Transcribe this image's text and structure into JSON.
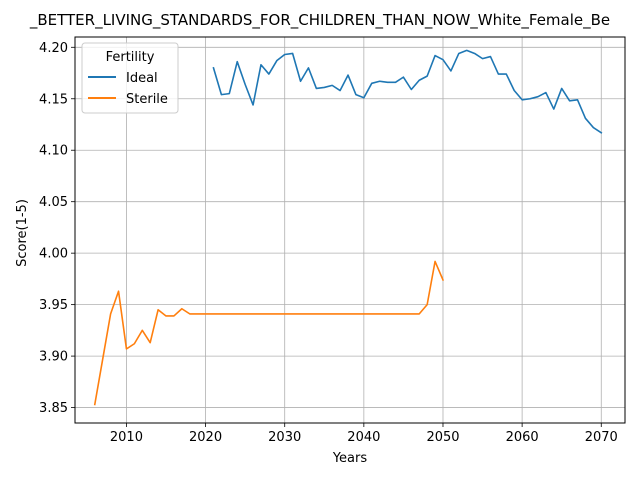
{
  "chart_data": {
    "type": "line",
    "title": "_BETTER_LIVING_STANDARDS_FOR_CHILDREN_THAN_NOW_White_Female_Be",
    "xlabel": "Years",
    "ylabel": "Score(1-5)",
    "xlim": [
      2003.5,
      2073.0
    ],
    "ylim": [
      3.835,
      4.21
    ],
    "xticks": [
      2010,
      2020,
      2030,
      2040,
      2050,
      2060,
      2070
    ],
    "yticks": [
      3.85,
      3.9,
      3.95,
      4.0,
      4.05,
      4.1,
      4.15,
      4.2
    ],
    "xtick_labels": [
      "2010",
      "2020",
      "2030",
      "2040",
      "2050",
      "2060",
      "2070"
    ],
    "ytick_labels": [
      "3.85",
      "3.90",
      "3.95",
      "4.00",
      "4.05",
      "4.10",
      "4.15",
      "4.20"
    ],
    "grid": true,
    "legend": {
      "title": "Fertility",
      "placement": "upper-left"
    },
    "series": [
      {
        "name": "Ideal",
        "color": "#1f77b4",
        "x": [
          2021,
          2022,
          2023,
          2024,
          2025,
          2026,
          2027,
          2028,
          2029,
          2030,
          2031,
          2032,
          2033,
          2034,
          2035,
          2036,
          2037,
          2038,
          2039,
          2040,
          2041,
          2042,
          2043,
          2044,
          2045,
          2046,
          2047,
          2048,
          2049,
          2050,
          2051,
          2052,
          2053,
          2054,
          2055,
          2056,
          2057,
          2058,
          2059,
          2060,
          2061,
          2062,
          2063,
          2064,
          2065,
          2066,
          2067,
          2068,
          2069,
          2070
        ],
        "y": [
          4.18,
          4.154,
          4.155,
          4.186,
          4.164,
          4.144,
          4.183,
          4.174,
          4.187,
          4.193,
          4.194,
          4.167,
          4.18,
          4.16,
          4.161,
          4.163,
          4.158,
          4.173,
          4.154,
          4.151,
          4.165,
          4.167,
          4.166,
          4.166,
          4.171,
          4.159,
          4.168,
          4.172,
          4.192,
          4.188,
          4.177,
          4.194,
          4.197,
          4.194,
          4.189,
          4.191,
          4.174,
          4.174,
          4.158,
          4.149,
          4.15,
          4.152,
          4.156,
          4.14,
          4.16,
          4.148,
          4.149,
          4.131,
          4.122,
          4.117
        ]
      },
      {
        "name": "Sterile",
        "color": "#ff7f0e",
        "x": [
          2006,
          2007,
          2008,
          2009,
          2010,
          2011,
          2012,
          2013,
          2014,
          2015,
          2016,
          2017,
          2018,
          2019,
          2020,
          2021,
          2022,
          2023,
          2024,
          2025,
          2026,
          2027,
          2028,
          2029,
          2030,
          2031,
          2032,
          2033,
          2034,
          2035,
          2036,
          2037,
          2038,
          2039,
          2040,
          2041,
          2042,
          2043,
          2044,
          2045,
          2046,
          2047,
          2048,
          2049,
          2050
        ],
        "y": [
          3.853,
          3.897,
          3.941,
          3.963,
          3.907,
          3.912,
          3.925,
          3.913,
          3.945,
          3.939,
          3.939,
          3.946,
          3.941,
          3.941,
          3.941,
          3.941,
          3.941,
          3.941,
          3.941,
          3.941,
          3.941,
          3.941,
          3.941,
          3.941,
          3.941,
          3.941,
          3.941,
          3.941,
          3.941,
          3.941,
          3.941,
          3.941,
          3.941,
          3.941,
          3.941,
          3.941,
          3.941,
          3.941,
          3.941,
          3.941,
          3.941,
          3.941,
          3.95,
          3.992,
          3.974
        ]
      }
    ]
  }
}
